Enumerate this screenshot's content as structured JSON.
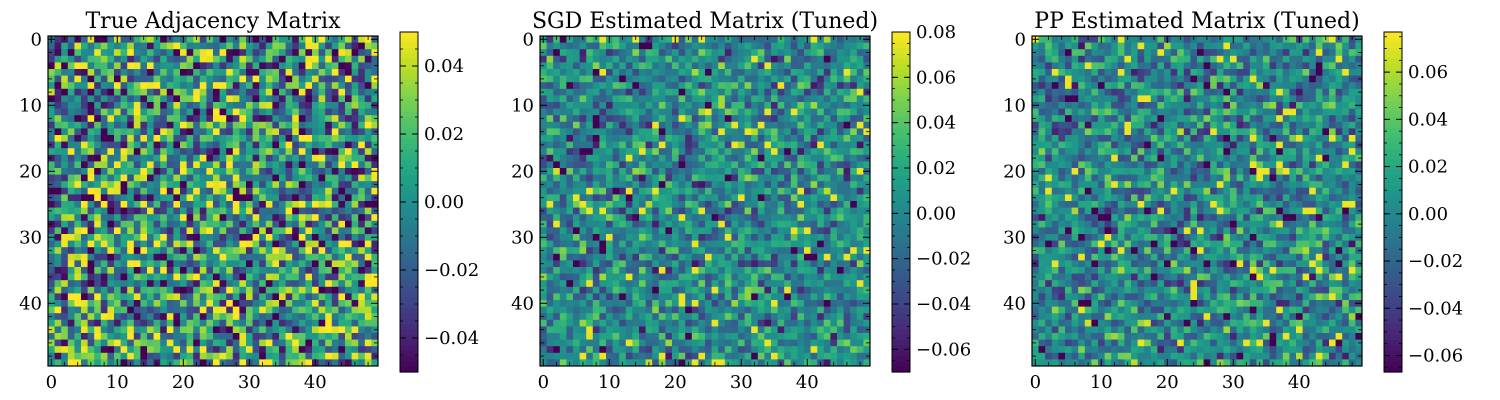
{
  "chart_data": [
    {
      "type": "heatmap",
      "title": "True Adjacency Matrix",
      "rows": 50,
      "cols": 50,
      "colormap": "viridis",
      "xticks": [
        "0",
        "10",
        "20",
        "30",
        "40"
      ],
      "yticks": [
        "0",
        "10",
        "20",
        "30",
        "40"
      ],
      "xlim": [
        0,
        49
      ],
      "ylim": [
        49,
        0
      ],
      "vmin": -0.05,
      "vmax": 0.05,
      "colorbar_ticks": [
        -0.04,
        -0.02,
        0.0,
        0.02,
        0.04
      ],
      "colorbar_labels": [
        "−0.04",
        "−0.02",
        "0.00",
        "0.02",
        "0.04"
      ],
      "seed": 17,
      "spread": 0.032
    },
    {
      "type": "heatmap",
      "title": "SGD Estimated Matrix (Tuned)",
      "rows": 50,
      "cols": 50,
      "colormap": "viridis",
      "xticks": [
        "0",
        "10",
        "20",
        "30",
        "40"
      ],
      "yticks": [
        "0",
        "10",
        "20",
        "30",
        "40"
      ],
      "xlim": [
        0,
        49
      ],
      "ylim": [
        49,
        0
      ],
      "vmin": -0.07,
      "vmax": 0.08,
      "colorbar_ticks": [
        -0.06,
        -0.04,
        -0.02,
        0.0,
        0.02,
        0.04,
        0.06,
        0.08
      ],
      "colorbar_labels": [
        "−0.06",
        "−0.04",
        "−0.02",
        "0.00",
        "0.02",
        "0.04",
        "0.06",
        "0.08"
      ],
      "seed": 41,
      "spread": 0.024
    },
    {
      "type": "heatmap",
      "title": "PP Estimated Matrix (Tuned)",
      "rows": 50,
      "cols": 50,
      "colormap": "viridis",
      "xticks": [
        "0",
        "10",
        "20",
        "30",
        "40"
      ],
      "yticks": [
        "0",
        "10",
        "20",
        "30",
        "40"
      ],
      "xlim": [
        0,
        49
      ],
      "ylim": [
        49,
        0
      ],
      "vmin": -0.067,
      "vmax": 0.077,
      "colorbar_ticks": [
        -0.06,
        -0.04,
        -0.02,
        0.0,
        0.02,
        0.04,
        0.06
      ],
      "colorbar_labels": [
        "−0.06",
        "−0.04",
        "−0.02",
        "0.00",
        "0.02",
        "0.04",
        "0.06"
      ],
      "seed": 73,
      "spread": 0.024
    }
  ]
}
